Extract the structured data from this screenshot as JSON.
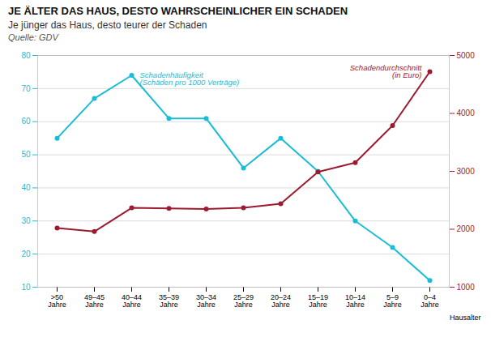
{
  "chart_data": {
    "type": "line",
    "title": "JE ÄLTER DAS HAUS, DESTO WAHRSCHEINLICHER EIN SCHADEN",
    "subtitle": "Je jünger das Haus, desto teurer der Schaden",
    "source": "Quelle: GDV",
    "xlabel": "Hausalter",
    "categories": [
      ">50\nJahre",
      "49–45\nJahre",
      "40–44\nJahre",
      "35–39\nJahre",
      "30–34\nJahre",
      "25–29\nJahre",
      "20–24\nJahre",
      "15–19\nJahre",
      "10–14\nJahre",
      "5–9\nJahre",
      "0–4\nJahre"
    ],
    "series": [
      {
        "name": "Schadenhäufigkeit\n(Schäden pro 1000 Verträge)",
        "color": "#1BBCD4",
        "marker": "circle",
        "values": [
          55,
          67,
          74,
          61,
          61,
          46,
          55,
          45,
          30,
          22,
          12
        ]
      },
      {
        "name": "Schadendurchschnitt\n(in Euro)",
        "color": "#9B1B30",
        "marker": "circle",
        "axis": "y2",
        "values": [
          2020,
          1960,
          2370,
          2360,
          2350,
          2370,
          2440,
          2990,
          3150,
          3790,
          4720
        ]
      }
    ],
    "ylim": [
      10,
      80
    ],
    "yticks": [
      10,
      20,
      30,
      40,
      50,
      60,
      70,
      80
    ],
    "y2lim": [
      1000,
      5000
    ],
    "y2ticks": [
      1000,
      2000,
      3000,
      4000,
      5000
    ],
    "grid": true
  }
}
